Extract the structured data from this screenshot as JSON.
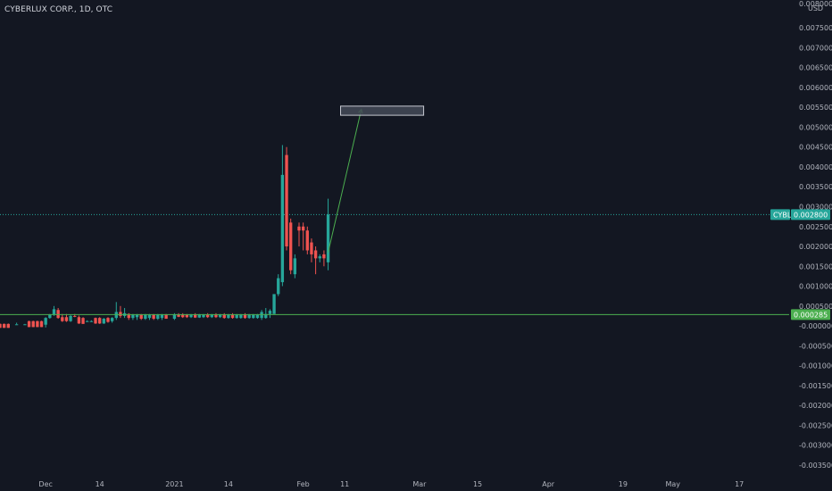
{
  "header": {
    "title": "CYBERLUX CORP., 1D, OTC"
  },
  "price_axis": {
    "top_label": "0.008000",
    "currency": "USD"
  },
  "price_tags": {
    "current": {
      "symbol": "CYBL",
      "value": "0.002800",
      "color": "#26a69a"
    },
    "level": {
      "value": "0.000285",
      "color": "#4caf50"
    }
  },
  "colors": {
    "up": "#26a69a",
    "down": "#ef5350",
    "grid": "#1e222d",
    "text": "#b2b5be",
    "arrow": "#4caf50",
    "box_fill": "#444a57",
    "box_stroke": "#c5c8d0"
  },
  "chart_data": {
    "type": "candlestick",
    "title": "CYBERLUX CORP., 1D, OTC",
    "ylabel": "USD",
    "ylim": [
      -0.00375,
      0.0082
    ],
    "grid": false,
    "y_ticks": [
      "0.007500",
      "0.007000",
      "0.006500",
      "0.006000",
      "0.005500",
      "0.005000",
      "0.004500",
      "0.004000",
      "0.003500",
      "0.003000",
      "0.002500",
      "0.002000",
      "0.001500",
      "0.001000",
      "0.000500",
      "-0.000000",
      "-0.000500",
      "-0.001000",
      "-0.001500",
      "-0.002000",
      "-0.002500",
      "-0.003000",
      "-0.003500"
    ],
    "x_ticks": [
      {
        "label": "Dec",
        "date": "2020-12-01"
      },
      {
        "label": "14",
        "date": "2020-12-14"
      },
      {
        "label": "2021",
        "date": "2021-01-01"
      },
      {
        "label": "14",
        "date": "2021-01-14"
      },
      {
        "label": "Feb",
        "date": "2021-02-01"
      },
      {
        "label": "11",
        "date": "2021-02-11"
      },
      {
        "label": "Mar",
        "date": "2021-03-01"
      },
      {
        "label": "15",
        "date": "2021-03-15"
      },
      {
        "label": "Apr",
        "date": "2021-04-01"
      },
      {
        "label": "19",
        "date": "2021-04-19"
      },
      {
        "label": "May",
        "date": "2021-05-01"
      },
      {
        "label": "17",
        "date": "2021-05-17"
      }
    ],
    "xlim": [
      "2020-11-20",
      "2021-05-29"
    ],
    "candles": [
      {
        "date": "2020-11-20",
        "o": 5e-05,
        "h": 6e-05,
        "l": -5e-05,
        "c": -5e-05
      },
      {
        "date": "2020-11-21",
        "o": 5e-05,
        "h": 6e-05,
        "l": -5e-05,
        "c": -5e-05
      },
      {
        "date": "2020-11-22",
        "o": 5e-05,
        "h": 6e-05,
        "l": -5e-05,
        "c": -5e-05
      },
      {
        "date": "2020-11-24",
        "o": 4e-05,
        "h": 8e-05,
        "l": 4e-05,
        "c": 4e-05
      },
      {
        "date": "2020-11-26",
        "o": 4e-05,
        "h": 5e-05,
        "l": 4e-05,
        "c": 4e-05
      },
      {
        "date": "2020-11-27",
        "o": 0.00012,
        "h": 0.00013,
        "l": -3e-05,
        "c": -3e-05
      },
      {
        "date": "2020-11-28",
        "o": 0.00012,
        "h": 0.00013,
        "l": -3e-05,
        "c": -3e-05
      },
      {
        "date": "2020-11-29",
        "o": 0.00012,
        "h": 0.00013,
        "l": -3e-05,
        "c": -3e-05
      },
      {
        "date": "2020-11-30",
        "o": 0.00012,
        "h": 0.00013,
        "l": -3e-05,
        "c": -3e-05
      },
      {
        "date": "2020-12-01",
        "o": 3e-05,
        "h": 0.00022,
        "l": -4e-05,
        "c": 0.0002
      },
      {
        "date": "2020-12-02",
        "o": 0.0002,
        "h": 0.0003,
        "l": 0.00018,
        "c": 0.00028
      },
      {
        "date": "2020-12-03",
        "o": 0.00028,
        "h": 0.0005,
        "l": 0.00025,
        "c": 0.00042
      },
      {
        "date": "2020-12-04",
        "o": 0.0004,
        "h": 0.00045,
        "l": 0.00018,
        "c": 0.0002
      },
      {
        "date": "2020-12-05",
        "o": 0.00022,
        "h": 0.0003,
        "l": 0.0001,
        "c": 0.00012
      },
      {
        "date": "2020-12-06",
        "o": 0.00022,
        "h": 0.0003,
        "l": 0.0001,
        "c": 0.00012
      },
      {
        "date": "2020-12-07",
        "o": 0.00012,
        "h": 0.00028,
        "l": 0.0001,
        "c": 0.00025
      },
      {
        "date": "2020-12-08",
        "o": 0.00025,
        "h": 0.0003,
        "l": 0.00022,
        "c": 0.00024
      },
      {
        "date": "2020-12-09",
        "o": 0.00022,
        "h": 0.00026,
        "l": 5e-05,
        "c": 6e-05
      },
      {
        "date": "2020-12-10",
        "o": 0.0002,
        "h": 0.00022,
        "l": 5e-05,
        "c": 5e-05
      },
      {
        "date": "2020-12-11",
        "o": 0.00012,
        "h": 0.00014,
        "l": 0.00011,
        "c": 0.00012
      },
      {
        "date": "2020-12-12",
        "o": 0.00012,
        "h": 0.00014,
        "l": 0.00011,
        "c": 0.00012
      },
      {
        "date": "2020-12-13",
        "o": 0.0002,
        "h": 0.00021,
        "l": 5e-05,
        "c": 6e-05
      },
      {
        "date": "2020-12-14",
        "o": 0.0002,
        "h": 0.00022,
        "l": 5e-05,
        "c": 6e-05
      },
      {
        "date": "2020-12-15",
        "o": 6e-05,
        "h": 0.0002,
        "l": 5e-05,
        "c": 0.00018
      },
      {
        "date": "2020-12-16",
        "o": 0.0002,
        "h": 0.00022,
        "l": 8e-05,
        "c": 0.0001
      },
      {
        "date": "2020-12-17",
        "o": 0.00012,
        "h": 0.00022,
        "l": 8e-05,
        "c": 0.0002
      },
      {
        "date": "2020-12-18",
        "o": 0.0002,
        "h": 0.0006,
        "l": 0.00015,
        "c": 0.00035
      },
      {
        "date": "2020-12-19",
        "o": 0.00035,
        "h": 0.0005,
        "l": 0.0002,
        "c": 0.00025
      },
      {
        "date": "2020-12-20",
        "o": 0.00025,
        "h": 0.00045,
        "l": 0.0002,
        "c": 0.00032
      },
      {
        "date": "2020-12-21",
        "o": 0.0003,
        "h": 0.00032,
        "l": 0.00015,
        "c": 0.0002
      },
      {
        "date": "2020-12-22",
        "o": 0.0002,
        "h": 0.0003,
        "l": 0.00015,
        "c": 0.00028
      },
      {
        "date": "2020-12-23",
        "o": 0.00022,
        "h": 0.0003,
        "l": 0.00015,
        "c": 0.00028
      },
      {
        "date": "2020-12-24",
        "o": 0.00028,
        "h": 0.0003,
        "l": 0.00015,
        "c": 0.00018
      },
      {
        "date": "2020-12-25",
        "o": 0.00018,
        "h": 0.0003,
        "l": 0.00015,
        "c": 0.00028
      },
      {
        "date": "2020-12-26",
        "o": 0.0002,
        "h": 0.0003,
        "l": 0.00015,
        "c": 0.00028
      },
      {
        "date": "2020-12-27",
        "o": 0.00028,
        "h": 0.0003,
        "l": 0.00015,
        "c": 0.00018
      },
      {
        "date": "2020-12-28",
        "o": 0.00018,
        "h": 0.0003,
        "l": 0.00015,
        "c": 0.00028
      },
      {
        "date": "2020-12-29",
        "o": 0.0002,
        "h": 0.0003,
        "l": 0.00015,
        "c": 0.00028
      },
      {
        "date": "2020-12-30",
        "o": 0.00028,
        "h": 0.0003,
        "l": 0.00018,
        "c": 0.00018
      },
      {
        "date": "2021-01-01",
        "o": 0.00018,
        "h": 0.00032,
        "l": 0.00015,
        "c": 0.00028
      },
      {
        "date": "2021-01-02",
        "o": 0.00028,
        "h": 0.00032,
        "l": 0.00022,
        "c": 0.00023
      },
      {
        "date": "2021-01-03",
        "o": 0.00028,
        "h": 0.00032,
        "l": 0.0002,
        "c": 0.00022
      },
      {
        "date": "2021-01-04",
        "o": 0.00028,
        "h": 0.0003,
        "l": 0.0002,
        "c": 0.00022
      },
      {
        "date": "2021-01-05",
        "o": 0.00022,
        "h": 0.0003,
        "l": 0.0002,
        "c": 0.00028
      },
      {
        "date": "2021-01-06",
        "o": 0.00028,
        "h": 0.00032,
        "l": 0.0002,
        "c": 0.00021
      },
      {
        "date": "2021-01-07",
        "o": 0.00021,
        "h": 0.0003,
        "l": 0.0002,
        "c": 0.00029
      },
      {
        "date": "2021-01-08",
        "o": 0.00022,
        "h": 0.0003,
        "l": 0.0002,
        "c": 0.00028
      },
      {
        "date": "2021-01-09",
        "o": 0.00028,
        "h": 0.00032,
        "l": 0.0002,
        "c": 0.00022
      },
      {
        "date": "2021-01-10",
        "o": 0.00022,
        "h": 0.0003,
        "l": 0.0002,
        "c": 0.00028
      },
      {
        "date": "2021-01-11",
        "o": 0.00028,
        "h": 0.00032,
        "l": 0.0002,
        "c": 0.00022
      },
      {
        "date": "2021-01-12",
        "o": 0.00022,
        "h": 0.0003,
        "l": 0.0002,
        "c": 0.00028
      },
      {
        "date": "2021-01-13",
        "o": 0.00028,
        "h": 0.00032,
        "l": 0.00018,
        "c": 0.0002
      },
      {
        "date": "2021-01-14",
        "o": 0.0002,
        "h": 0.0003,
        "l": 0.00018,
        "c": 0.00028
      },
      {
        "date": "2021-01-15",
        "o": 0.00028,
        "h": 0.00032,
        "l": 0.00018,
        "c": 0.0002
      },
      {
        "date": "2021-01-16",
        "o": 0.0002,
        "h": 0.0003,
        "l": 0.00018,
        "c": 0.00028
      },
      {
        "date": "2021-01-17",
        "o": 0.0002,
        "h": 0.0003,
        "l": 0.00018,
        "c": 0.00028
      },
      {
        "date": "2021-01-18",
        "o": 0.00028,
        "h": 0.00032,
        "l": 0.00018,
        "c": 0.0002
      },
      {
        "date": "2021-01-19",
        "o": 0.0002,
        "h": 0.0003,
        "l": 0.00018,
        "c": 0.00028
      },
      {
        "date": "2021-01-20",
        "o": 0.0002,
        "h": 0.0003,
        "l": 0.00018,
        "c": 0.00028
      },
      {
        "date": "2021-01-21",
        "o": 0.0002,
        "h": 0.0003,
        "l": 0.00018,
        "c": 0.00028
      },
      {
        "date": "2021-01-22",
        "o": 0.0002,
        "h": 0.0004,
        "l": 0.00015,
        "c": 0.00035
      },
      {
        "date": "2021-01-23",
        "o": 0.0002,
        "h": 0.00045,
        "l": 0.00018,
        "c": 0.0003
      },
      {
        "date": "2021-01-24",
        "o": 0.0003,
        "h": 0.00042,
        "l": 0.0002,
        "c": 0.00038
      },
      {
        "date": "2021-01-25",
        "o": 0.0003,
        "h": 0.0008,
        "l": 0.0003,
        "c": 0.0008
      },
      {
        "date": "2021-01-26",
        "o": 0.0008,
        "h": 0.0013,
        "l": 0.00075,
        "c": 0.0012
      },
      {
        "date": "2021-01-27",
        "o": 0.0011,
        "h": 0.00455,
        "l": 0.001,
        "c": 0.0038
      },
      {
        "date": "2021-01-28",
        "o": 0.0043,
        "h": 0.0045,
        "l": 0.0019,
        "c": 0.002
      },
      {
        "date": "2021-01-29",
        "o": 0.0026,
        "h": 0.0027,
        "l": 0.0013,
        "c": 0.0014
      },
      {
        "date": "2021-01-30",
        "o": 0.0013,
        "h": 0.0018,
        "l": 0.0012,
        "c": 0.0017
      },
      {
        "date": "2021-01-31",
        "o": 0.0025,
        "h": 0.0026,
        "l": 0.002,
        "c": 0.0024
      },
      {
        "date": "2021-02-01",
        "o": 0.0025,
        "h": 0.0026,
        "l": 0.0019,
        "c": 0.0024
      },
      {
        "date": "2021-02-02",
        "o": 0.0024,
        "h": 0.0025,
        "l": 0.0018,
        "c": 0.0019
      },
      {
        "date": "2021-02-03",
        "o": 0.0021,
        "h": 0.0022,
        "l": 0.0016,
        "c": 0.0018
      },
      {
        "date": "2021-02-04",
        "o": 0.0019,
        "h": 0.002,
        "l": 0.0013,
        "c": 0.0017
      },
      {
        "date": "2021-02-05",
        "o": 0.0017,
        "h": 0.0018,
        "l": 0.0016,
        "c": 0.00175
      },
      {
        "date": "2021-02-06",
        "o": 0.0018,
        "h": 0.0019,
        "l": 0.0015,
        "c": 0.0017
      },
      {
        "date": "2021-02-07",
        "o": 0.0016,
        "h": 0.0032,
        "l": 0.0014,
        "c": 0.0028
      }
    ],
    "annotations": [
      {
        "type": "arrow",
        "from": {
          "date": "2021-02-07",
          "value": 0.00185
        },
        "to": {
          "date": "2021-02-15",
          "value": 0.00545
        }
      },
      {
        "type": "box",
        "x0": "2021-02-10",
        "x1": "2021-03-02",
        "y0": 0.0053,
        "y1": 0.00553
      },
      {
        "type": "hline",
        "value": 0.000285
      }
    ]
  }
}
